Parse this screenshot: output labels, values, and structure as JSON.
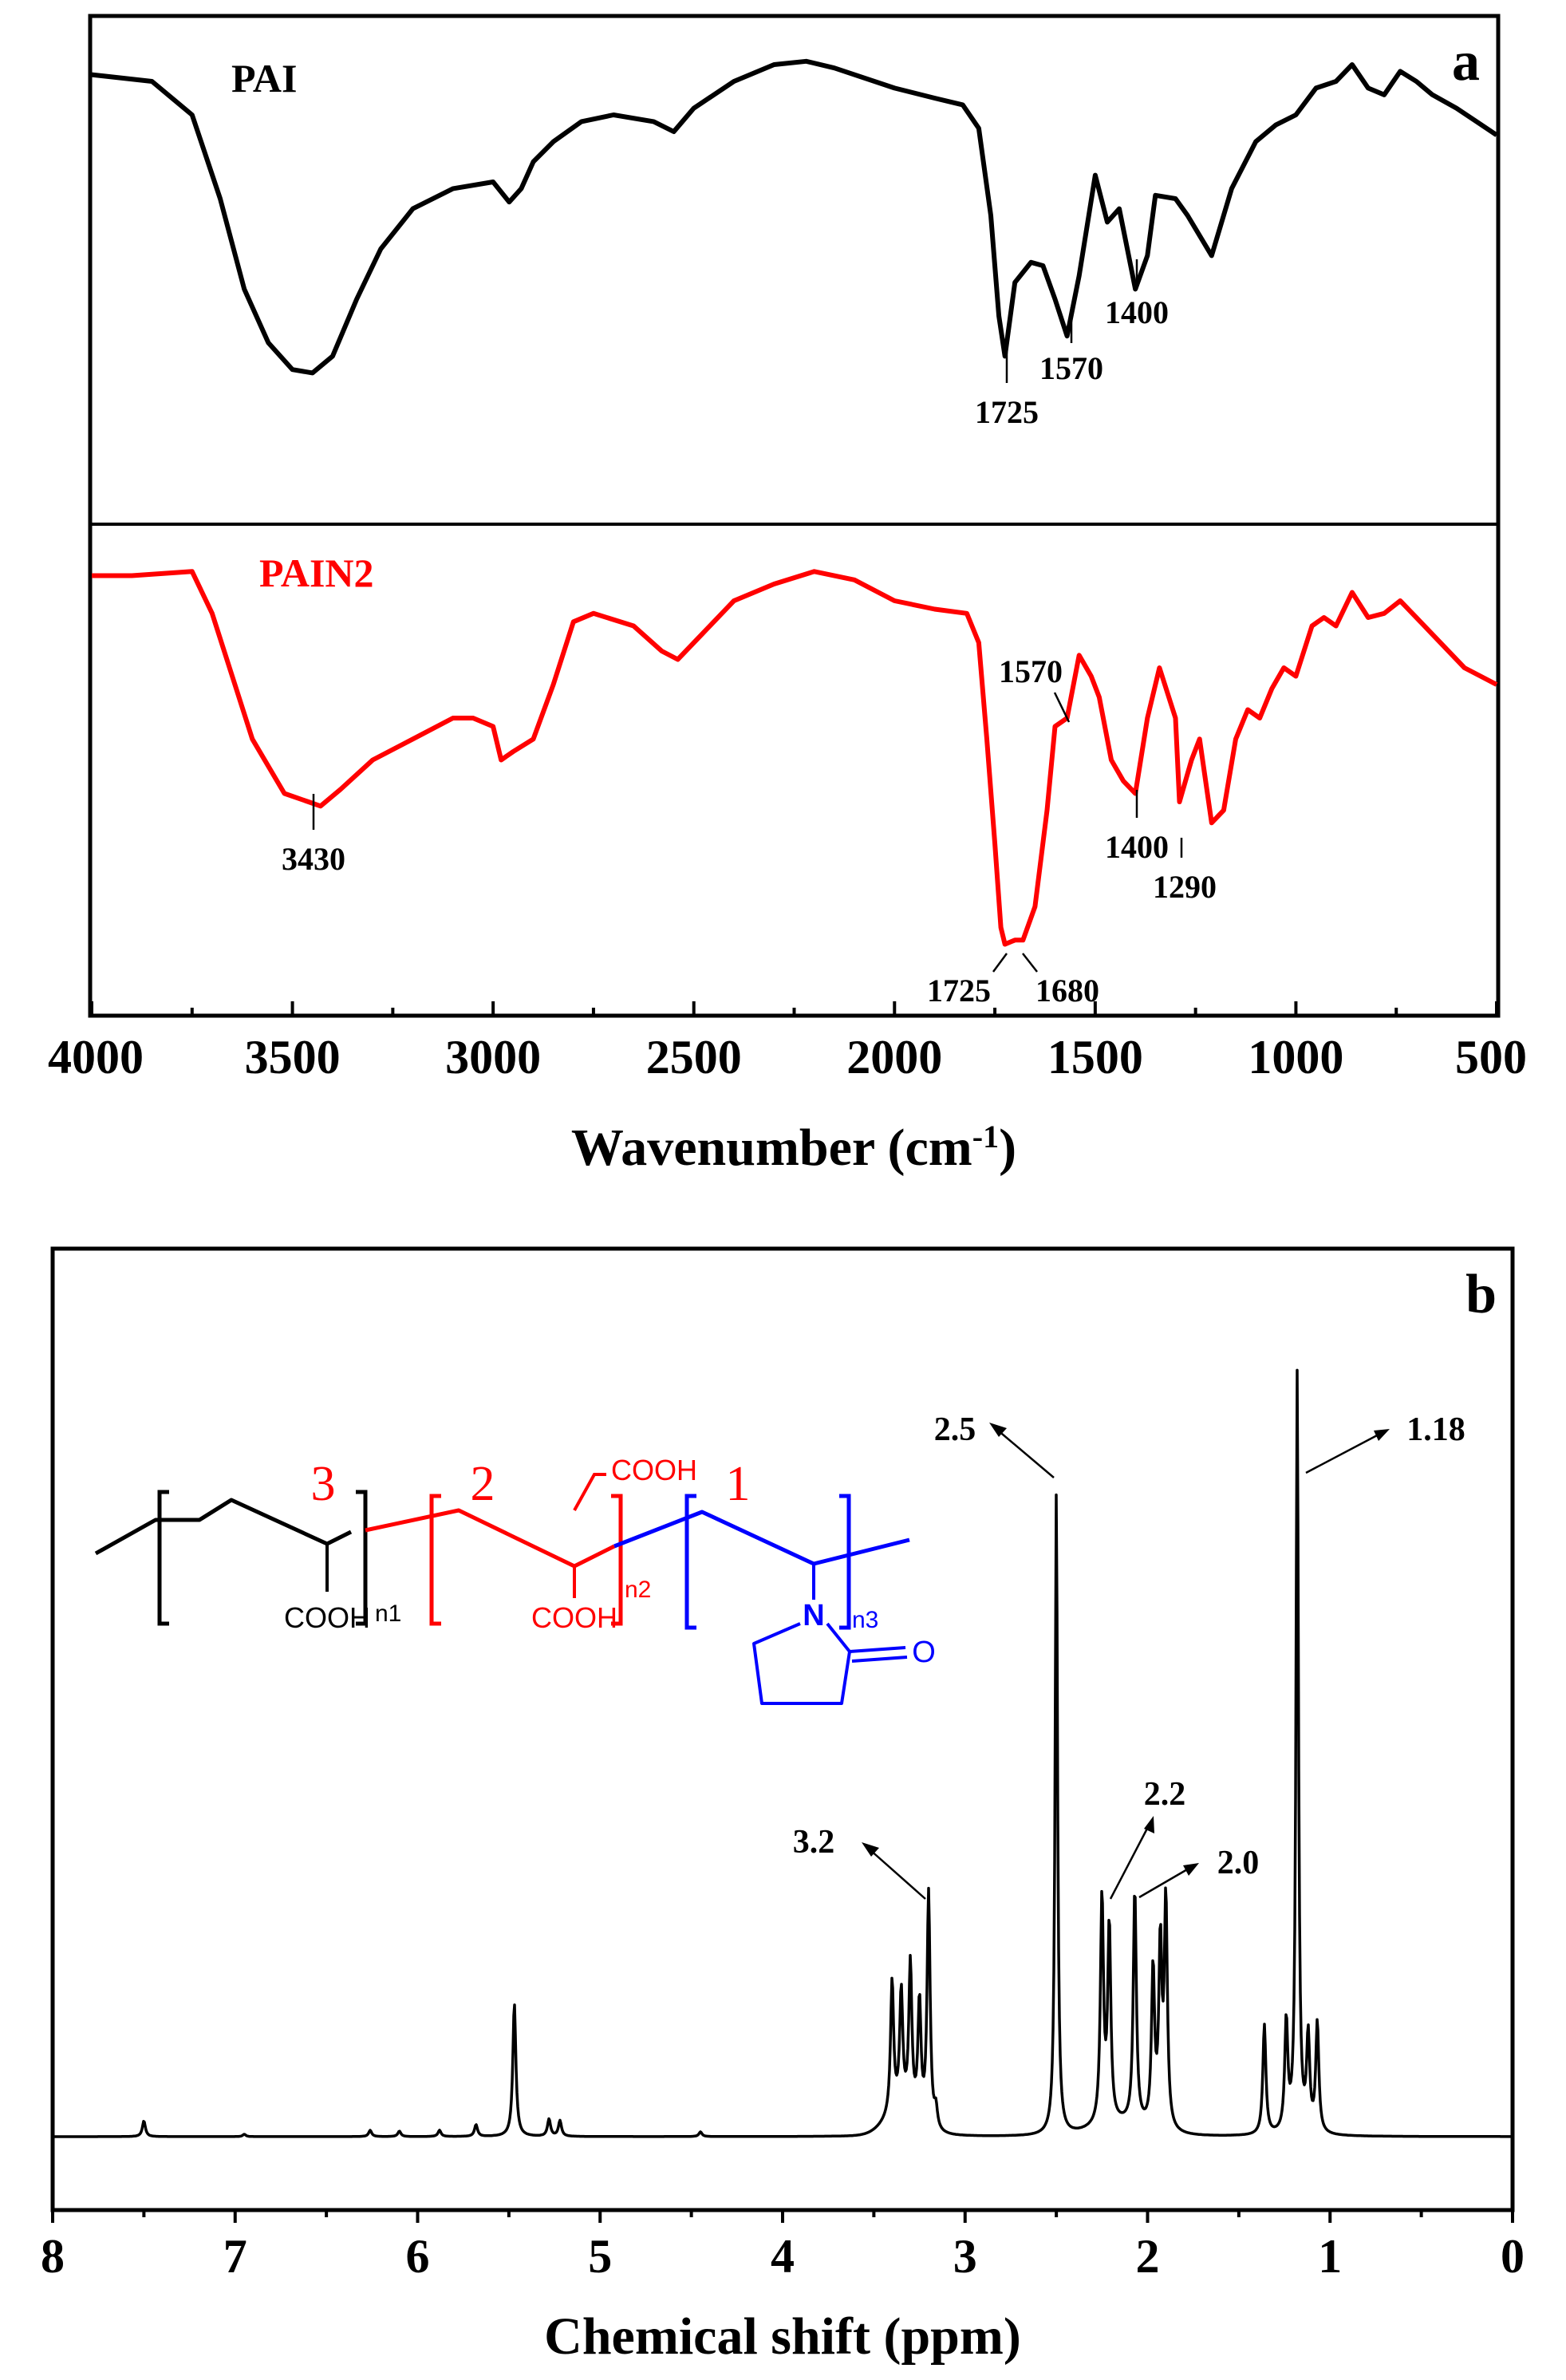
{
  "chart_data": [
    {
      "panel": "a",
      "type": "line",
      "xlabel": "Wavenumber (cm",
      "xlabel_sup": "-1",
      "xlabel_tail": ")",
      "xlim": [
        4000,
        500
      ],
      "x_reversed": true,
      "x_ticks": [
        "4000",
        "3500",
        "3000",
        "2500",
        "2000",
        "1500",
        "1000",
        "500"
      ],
      "stacked_subplots": 2,
      "series": [
        {
          "name": "PAI",
          "color": "#000000",
          "points": [
            [
              4000,
              0.92
            ],
            [
              3850,
              0.9
            ],
            [
              3750,
              0.8
            ],
            [
              3680,
              0.55
            ],
            [
              3620,
              0.28
            ],
            [
              3560,
              0.12
            ],
            [
              3500,
              0.04
            ],
            [
              3450,
              0.03
            ],
            [
              3400,
              0.08
            ],
            [
              3340,
              0.25
            ],
            [
              3280,
              0.4
            ],
            [
              3200,
              0.52
            ],
            [
              3100,
              0.58
            ],
            [
              3000,
              0.6
            ],
            [
              2960,
              0.54
            ],
            [
              2930,
              0.58
            ],
            [
              2900,
              0.66
            ],
            [
              2850,
              0.72
            ],
            [
              2780,
              0.78
            ],
            [
              2700,
              0.8
            ],
            [
              2600,
              0.78
            ],
            [
              2550,
              0.75
            ],
            [
              2500,
              0.82
            ],
            [
              2400,
              0.9
            ],
            [
              2300,
              0.95
            ],
            [
              2220,
              0.96
            ],
            [
              2150,
              0.94
            ],
            [
              2000,
              0.88
            ],
            [
              1900,
              0.85
            ],
            [
              1830,
              0.83
            ],
            [
              1790,
              0.76
            ],
            [
              1760,
              0.5
            ],
            [
              1740,
              0.2
            ],
            [
              1725,
              0.08
            ],
            [
              1700,
              0.3
            ],
            [
              1660,
              0.36
            ],
            [
              1630,
              0.35
            ],
            [
              1600,
              0.25
            ],
            [
              1570,
              0.14
            ],
            [
              1540,
              0.32
            ],
            [
              1500,
              0.62
            ],
            [
              1470,
              0.48
            ],
            [
              1440,
              0.52
            ],
            [
              1400,
              0.28
            ],
            [
              1370,
              0.38
            ],
            [
              1350,
              0.56
            ],
            [
              1300,
              0.55
            ],
            [
              1270,
              0.5
            ],
            [
              1210,
              0.38
            ],
            [
              1160,
              0.58
            ],
            [
              1100,
              0.72
            ],
            [
              1050,
              0.77
            ],
            [
              1000,
              0.8
            ],
            [
              950,
              0.88
            ],
            [
              900,
              0.9
            ],
            [
              860,
              0.95
            ],
            [
              820,
              0.88
            ],
            [
              780,
              0.86
            ],
            [
              740,
              0.93
            ],
            [
              700,
              0.9
            ],
            [
              660,
              0.86
            ],
            [
              600,
              0.82
            ],
            [
              550,
              0.78
            ],
            [
              500,
              0.74
            ]
          ]
        },
        {
          "name": "PAIN2",
          "color": "#ff0000",
          "points": [
            [
              4000,
              0.94
            ],
            [
              3900,
              0.94
            ],
            [
              3750,
              0.95
            ],
            [
              3700,
              0.85
            ],
            [
              3650,
              0.7
            ],
            [
              3600,
              0.55
            ],
            [
              3520,
              0.42
            ],
            [
              3460,
              0.4
            ],
            [
              3430,
              0.39
            ],
            [
              3380,
              0.43
            ],
            [
              3300,
              0.5
            ],
            [
              3200,
              0.55
            ],
            [
              3100,
              0.6
            ],
            [
              3050,
              0.6
            ],
            [
              3000,
              0.58
            ],
            [
              2980,
              0.5
            ],
            [
              2950,
              0.52
            ],
            [
              2900,
              0.55
            ],
            [
              2850,
              0.68
            ],
            [
              2800,
              0.83
            ],
            [
              2750,
              0.85
            ],
            [
              2650,
              0.82
            ],
            [
              2580,
              0.76
            ],
            [
              2540,
              0.74
            ],
            [
              2480,
              0.8
            ],
            [
              2400,
              0.88
            ],
            [
              2300,
              0.92
            ],
            [
              2200,
              0.95
            ],
            [
              2100,
              0.93
            ],
            [
              2000,
              0.88
            ],
            [
              1900,
              0.86
            ],
            [
              1820,
              0.85
            ],
            [
              1790,
              0.78
            ],
            [
              1770,
              0.55
            ],
            [
              1750,
              0.3
            ],
            [
              1735,
              0.1
            ],
            [
              1725,
              0.06
            ],
            [
              1700,
              0.07
            ],
            [
              1680,
              0.07
            ],
            [
              1650,
              0.15
            ],
            [
              1620,
              0.38
            ],
            [
              1600,
              0.58
            ],
            [
              1570,
              0.6
            ],
            [
              1540,
              0.75
            ],
            [
              1510,
              0.7
            ],
            [
              1490,
              0.65
            ],
            [
              1460,
              0.5
            ],
            [
              1430,
              0.45
            ],
            [
              1400,
              0.42
            ],
            [
              1370,
              0.6
            ],
            [
              1340,
              0.72
            ],
            [
              1300,
              0.6
            ],
            [
              1290,
              0.4
            ],
            [
              1260,
              0.5
            ],
            [
              1240,
              0.55
            ],
            [
              1210,
              0.35
            ],
            [
              1180,
              0.38
            ],
            [
              1150,
              0.55
            ],
            [
              1120,
              0.62
            ],
            [
              1090,
              0.6
            ],
            [
              1060,
              0.67
            ],
            [
              1030,
              0.72
            ],
            [
              1000,
              0.7
            ],
            [
              960,
              0.82
            ],
            [
              930,
              0.84
            ],
            [
              900,
              0.82
            ],
            [
              860,
              0.9
            ],
            [
              820,
              0.84
            ],
            [
              780,
              0.85
            ],
            [
              740,
              0.88
            ],
            [
              700,
              0.84
            ],
            [
              660,
              0.8
            ],
            [
              620,
              0.76
            ],
            [
              580,
              0.72
            ],
            [
              540,
              0.7
            ],
            [
              500,
              0.68
            ]
          ]
        }
      ],
      "annotations": {
        "PAI": [
          "1725",
          "1570",
          "1400"
        ],
        "PAIN2": [
          "3430",
          "1570",
          "1400",
          "1290",
          "1725",
          "1680"
        ]
      }
    },
    {
      "panel": "b",
      "type": "line",
      "xlabel": "Chemical shift (ppm)",
      "xlim": [
        8,
        0
      ],
      "x_reversed": true,
      "x_ticks": [
        "8",
        "7",
        "6",
        "5",
        "4",
        "3",
        "2",
        "1",
        "0"
      ],
      "series": [
        {
          "name": "",
          "color": "#000000",
          "peaks": [
            {
              "ppm": 7.5,
              "height": 0.02
            },
            {
              "ppm": 6.95,
              "height": 0.003
            },
            {
              "ppm": 6.26,
              "height": 0.008
            },
            {
              "ppm": 6.1,
              "height": 0.007
            },
            {
              "ppm": 5.88,
              "height": 0.008
            },
            {
              "ppm": 5.68,
              "height": 0.015
            },
            {
              "ppm": 5.47,
              "height": 0.17
            },
            {
              "ppm": 5.28,
              "height": 0.022
            },
            {
              "ppm": 5.22,
              "height": 0.02
            },
            {
              "ppm": 4.45,
              "height": 0.006
            },
            {
              "ppm": 3.4,
              "height": 0.17
            },
            {
              "ppm": 3.35,
              "height": 0.15
            },
            {
              "ppm": 3.3,
              "height": 0.19
            },
            {
              "ppm": 3.25,
              "height": 0.15
            },
            {
              "ppm": 3.2,
              "height": 0.3
            },
            {
              "ppm": 3.16,
              "height": 0.025
            },
            {
              "ppm": 2.5,
              "height": 0.82
            },
            {
              "ppm": 2.25,
              "height": 0.29
            },
            {
              "ppm": 2.21,
              "height": 0.25
            },
            {
              "ppm": 2.07,
              "height": 0.3
            },
            {
              "ppm": 1.97,
              "height": 0.2
            },
            {
              "ppm": 1.93,
              "height": 0.23
            },
            {
              "ppm": 1.9,
              "height": 0.29
            },
            {
              "ppm": 1.36,
              "height": 0.14
            },
            {
              "ppm": 1.24,
              "height": 0.14
            },
            {
              "ppm": 1.18,
              "height": 0.97
            },
            {
              "ppm": 1.12,
              "height": 0.12
            },
            {
              "ppm": 1.07,
              "height": 0.14
            }
          ]
        }
      ],
      "annotations": [
        "2.5",
        "1.18",
        "3.2",
        "2.2",
        "2.0"
      ],
      "structure": {
        "labels": [
          "3",
          "2",
          "1"
        ],
        "subscripts": [
          "n1",
          "n2",
          "n3"
        ],
        "groups": [
          "COOH",
          "COOH",
          "COOH"
        ],
        "atoms": [
          "N",
          "O"
        ],
        "colors": [
          "#000000",
          "#ff0000",
          "#0000ff"
        ]
      }
    }
  ]
}
